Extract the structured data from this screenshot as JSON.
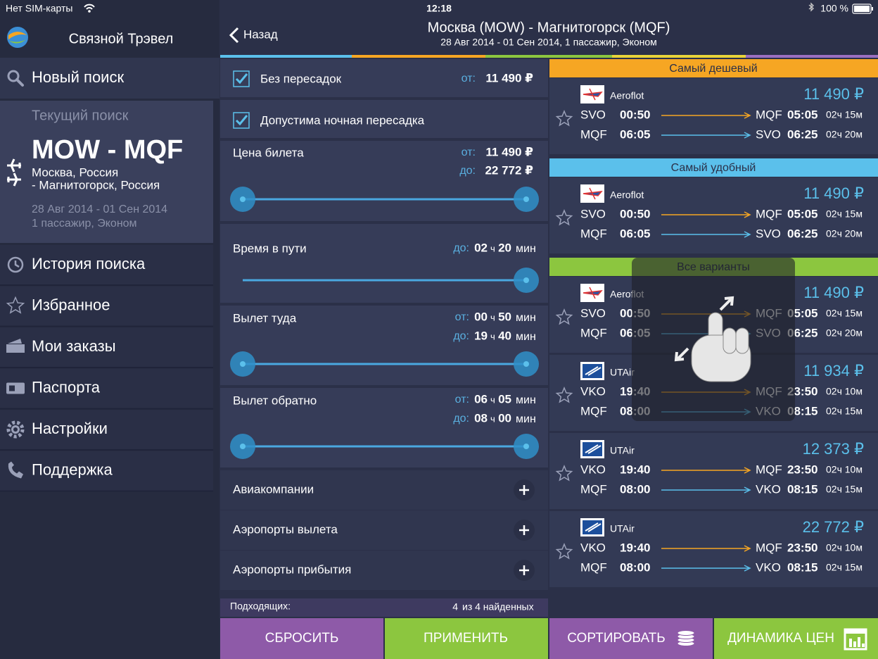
{
  "status_bar": {
    "carrier": "Нет SIM-карты",
    "time": "12:18",
    "battery": "100 %"
  },
  "sidebar": {
    "app_name": "Связной Трэвел",
    "new_search": "Новый поиск",
    "current_search": {
      "label": "Текущий поиск",
      "route": "MOW - MQF",
      "from": "Москва, Россия",
      "to": "- Магнитогорск, Россия",
      "dates": "28 Авг 2014 - 01 Сен 2014",
      "passengers": "1 пассажир, Эконом"
    },
    "menu": [
      "История поиска",
      "Избранное",
      "Мои заказы",
      "Паспорта",
      "Настройки",
      "Поддержка"
    ]
  },
  "header": {
    "back": "Назад",
    "title": "Москва (MOW) - Магнитогорск (MQF)",
    "subtitle": "28 Авг 2014 - 01 Сен 2014, 1 пассажир, Эконом"
  },
  "filters": {
    "units": {
      "hours": "ч",
      "minutes": "мин"
    },
    "checkboxes": [
      {
        "label": "Без пересадок",
        "price_prefix": "от:",
        "price": "11 490 ₽"
      },
      {
        "label": "Допустима ночная пересадка"
      }
    ],
    "price": {
      "label": "Цена билета",
      "from_prefix": "от:",
      "from": "11 490 ₽",
      "to_prefix": "до:",
      "to": "22 772 ₽"
    },
    "ranges": [
      {
        "label": "Время в пути",
        "bounds": [
          {
            "prefix": "до:",
            "hours": "02",
            "minutes": "20"
          }
        ]
      },
      {
        "label": "Вылет туда",
        "bounds": [
          {
            "prefix": "от:",
            "hours": "00",
            "minutes": "50"
          },
          {
            "prefix": "до:",
            "hours": "19",
            "minutes": "40"
          }
        ]
      },
      {
        "label": "Вылет обратно",
        "bounds": [
          {
            "prefix": "от:",
            "hours": "06",
            "minutes": "05"
          },
          {
            "prefix": "до:",
            "hours": "08",
            "minutes": "00"
          }
        ]
      }
    ],
    "expanders": [
      "Авиакомпании",
      "Аэропорты вылета",
      "Аэропорты прибытия"
    ],
    "summary": {
      "label": "Подходящих:",
      "count": "4",
      "total": "из 4 найденных"
    }
  },
  "buttons": [
    "СБРОСИТЬ",
    "ПРИМЕНИТЬ",
    "СОРТИРОВАТЬ",
    "ДИНАМИКА ЦЕН"
  ],
  "results": {
    "sections": [
      {
        "title": "Самый дешевый",
        "flights": [
          {
            "airline": "Aeroflot",
            "price": "11 490 ₽",
            "legs": [
              {
                "from": "SVO",
                "dep": "00:50",
                "to": "MQF",
                "arr": "05:05",
                "duration": "02ч 15м"
              },
              {
                "from": "MQF",
                "dep": "06:05",
                "to": "SVO",
                "arr": "06:25",
                "duration": "02ч 20м"
              }
            ]
          }
        ]
      },
      {
        "title": "Самый удобный",
        "flights": [
          {
            "airline": "Aeroflot",
            "price": "11 490 ₽",
            "legs": [
              {
                "from": "SVO",
                "dep": "00:50",
                "to": "MQF",
                "arr": "05:05",
                "duration": "02ч 15м"
              },
              {
                "from": "MQF",
                "dep": "06:05",
                "to": "SVO",
                "arr": "06:25",
                "duration": "02ч 20м"
              }
            ]
          }
        ]
      },
      {
        "title": "Все варианты",
        "flights": [
          {
            "airline": "Aeroflot",
            "price": "11 490 ₽",
            "legs": [
              {
                "from": "SVO",
                "dep": "00:50",
                "to": "MQF",
                "arr": "05:05",
                "duration": "02ч 15м"
              },
              {
                "from": "MQF",
                "dep": "06:05",
                "to": "SVO",
                "arr": "06:25",
                "duration": "02ч 20м"
              }
            ]
          },
          {
            "airline": "UTAir",
            "price": "11 934 ₽",
            "legs": [
              {
                "from": "VKO",
                "dep": "19:40",
                "to": "MQF",
                "arr": "23:50",
                "duration": "02ч 10м"
              },
              {
                "from": "MQF",
                "dep": "08:00",
                "to": "VKO",
                "arr": "08:15",
                "duration": "02ч 15м"
              }
            ]
          },
          {
            "airline": "UTAir",
            "price": "12 373 ₽",
            "legs": [
              {
                "from": "VKO",
                "dep": "19:40",
                "to": "MQF",
                "arr": "23:50",
                "duration": "02ч 10м"
              },
              {
                "from": "MQF",
                "dep": "08:00",
                "to": "VKO",
                "arr": "08:15",
                "duration": "02ч 15м"
              }
            ]
          },
          {
            "airline": "UTAir",
            "price": "22 772 ₽",
            "legs": [
              {
                "from": "VKO",
                "dep": "19:40",
                "to": "MQF",
                "arr": "23:50",
                "duration": "02ч 10м"
              },
              {
                "from": "MQF",
                "dep": "08:00",
                "to": "VKO",
                "arr": "08:15",
                "duration": "02ч 15м"
              }
            ]
          }
        ]
      }
    ]
  }
}
